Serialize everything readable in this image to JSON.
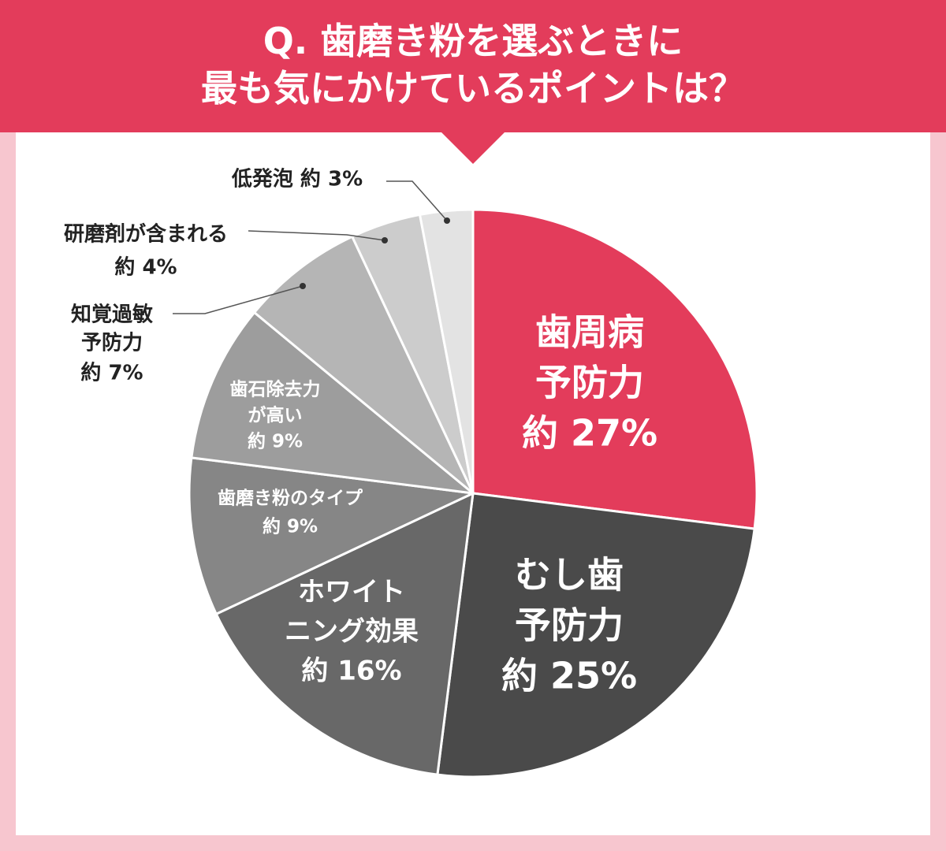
{
  "title": {
    "line1": "Q. 歯磨き粉を選ぶときに",
    "line2": "最も気にかけているポイントは？"
  },
  "colors": {
    "header_bg": "#e33c5b",
    "page_bg": "#f7c6cf",
    "panel_bg": "#ffffff",
    "highlight": "#e33c5b"
  },
  "chart_data": {
    "type": "pie",
    "start": "12 o'clock",
    "direction": "clockwise",
    "unit": "%",
    "slices": [
      {
        "label": "歯周病予防力",
        "lines": [
          "歯周病",
          "予防力"
        ],
        "value_text": "約 27%",
        "value": 27,
        "color": "#e33c5b",
        "text_color": "#ffffff",
        "label_position": "inside"
      },
      {
        "label": "むし歯予防力",
        "lines": [
          "むし歯",
          "予防力"
        ],
        "value_text": "約 25%",
        "value": 25,
        "color": "#4a4a4a",
        "text_color": "#ffffff",
        "label_position": "inside"
      },
      {
        "label": "ホワイトニング効果",
        "lines": [
          "ホワイト",
          "ニング効果"
        ],
        "value_text": "約 16%",
        "value": 16,
        "color": "#686868",
        "text_color": "#ffffff",
        "label_position": "inside"
      },
      {
        "label": "歯磨き粉のタイプ",
        "lines": [
          "歯磨き粉のタイプ"
        ],
        "value_text": "約 9%",
        "value": 9,
        "color": "#868686",
        "text_color": "#ffffff",
        "label_position": "inside"
      },
      {
        "label": "歯石除去力が高い",
        "lines": [
          "歯石除去力",
          "が高い"
        ],
        "value_text": "約 9%",
        "value": 9,
        "color": "#9d9d9d",
        "text_color": "#ffffff",
        "label_position": "inside"
      },
      {
        "label": "知覚過敏予防力",
        "lines": [
          "知覚過敏",
          "予防力"
        ],
        "value_text": "約 7%",
        "value": 7,
        "color": "#b5b5b5",
        "text_color": "#222222",
        "label_position": "outside"
      },
      {
        "label": "研磨剤が含まれる",
        "lines": [
          "研磨剤が含まれる"
        ],
        "value_text": "約 4%",
        "value": 4,
        "color": "#cccccc",
        "text_color": "#222222",
        "label_position": "outside"
      },
      {
        "label": "低発泡",
        "lines": [
          "低発泡"
        ],
        "value_text": "約 3%",
        "value": 3,
        "color": "#e3e3e3",
        "text_color": "#222222",
        "label_position": "outside"
      }
    ]
  }
}
